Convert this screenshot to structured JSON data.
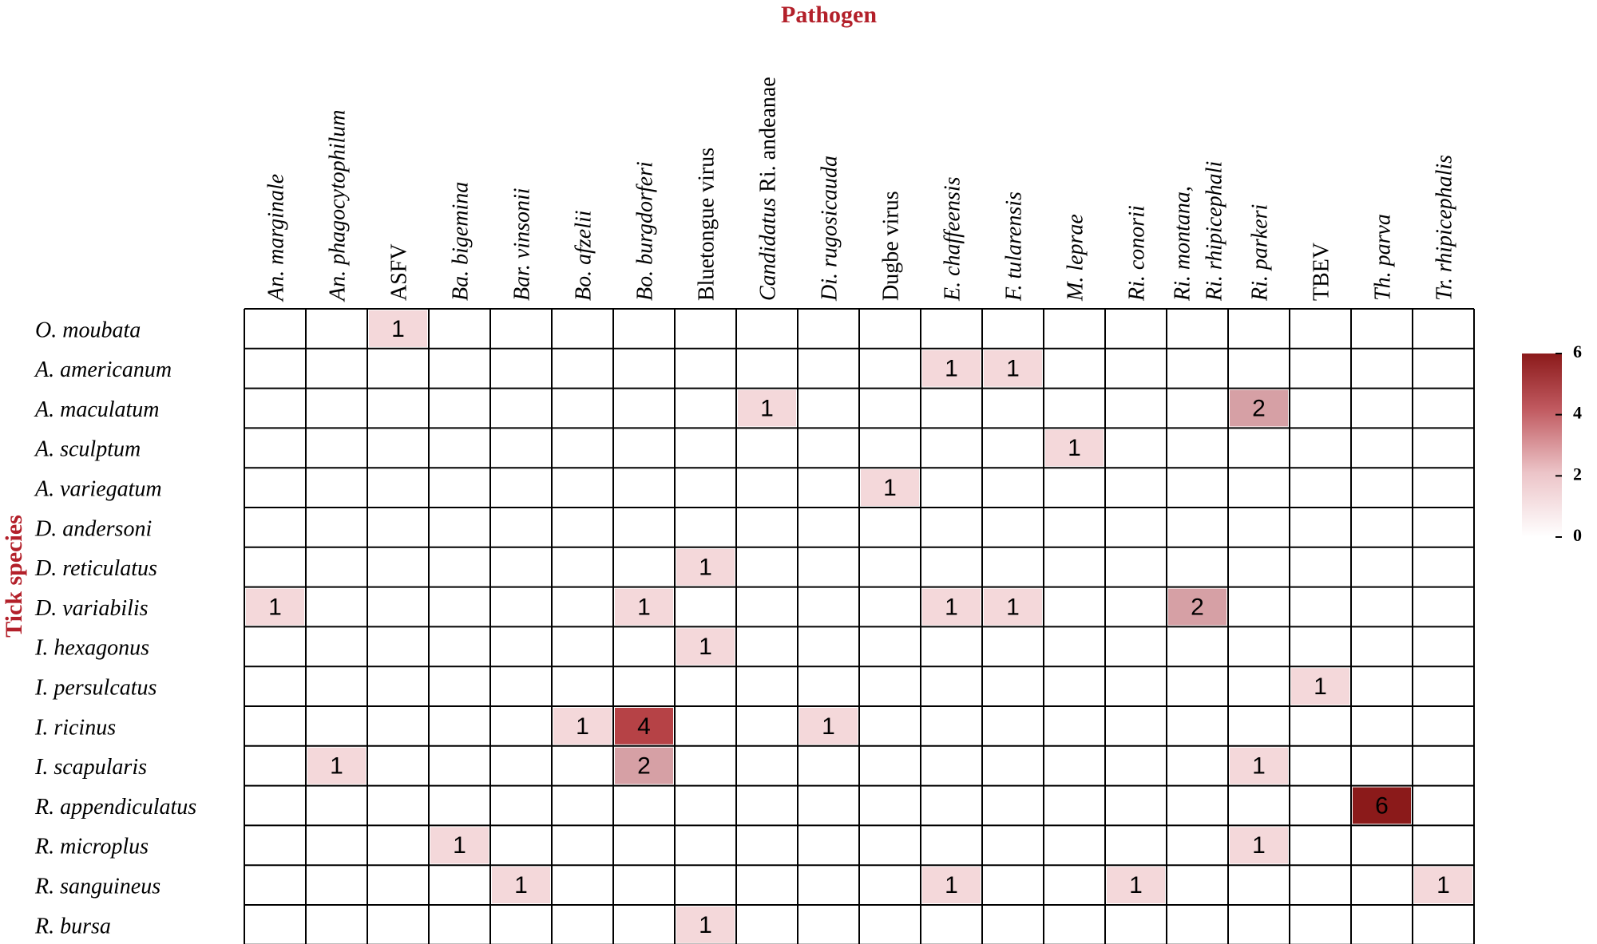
{
  "chart_data": {
    "type": "heatmap",
    "title": "",
    "xlabel": "Pathogen",
    "ylabel": "Tick species",
    "columns": [
      {
        "label": "An. marginale",
        "italic": [
          true
        ]
      },
      {
        "label": "An. phagocytophilum",
        "italic": [
          true
        ]
      },
      {
        "label": "ASFV",
        "italic": [
          false
        ]
      },
      {
        "label": "Ba. bigemina",
        "italic": [
          true
        ]
      },
      {
        "label": "Bar. vinsonii",
        "italic": [
          true
        ]
      },
      {
        "label": "Bo. afzelii",
        "italic": [
          true
        ]
      },
      {
        "label": "Bo. burgdorferi",
        "italic": [
          true
        ]
      },
      {
        "label": "Bluetongue virus",
        "italic": [
          false
        ]
      },
      {
        "label": "Candidatus Ri. andeanae",
        "italic": [
          true,
          false
        ]
      },
      {
        "label": "Di. rugosicauda",
        "italic": [
          true
        ]
      },
      {
        "label": "Dugbe virus",
        "italic": [
          false
        ]
      },
      {
        "label": "E. chaffeensis",
        "italic": [
          true
        ]
      },
      {
        "label": "F. tularensis",
        "italic": [
          true
        ]
      },
      {
        "label": "M. leprae",
        "italic": [
          true
        ]
      },
      {
        "label": "Ri. conorii",
        "italic": [
          true
        ]
      },
      {
        "label": "Ri. montana, Ri. rhipicephali",
        "lines": [
          "Ri. montana,",
          "Ri. rhipicephali"
        ],
        "italic": [
          true
        ]
      },
      {
        "label": "Ri. parkeri",
        "italic": [
          true
        ]
      },
      {
        "label": "TBEV",
        "italic": [
          false
        ]
      },
      {
        "label": "Th. parva",
        "italic": [
          true
        ]
      },
      {
        "label": "Tr. rhipicephalis",
        "italic": [
          true
        ]
      }
    ],
    "rows": [
      "O. moubata",
      "A. americanum",
      "A. maculatum",
      "A. sculptum",
      "A. variegatum",
      "D. andersoni",
      "D. reticulatus",
      "D. variabilis",
      "I. hexagonus",
      "I. persulcatus",
      "I. ricinus",
      "I. scapularis",
      "R. appendiculatus",
      "R. microplus",
      "R. sanguineus",
      "R. bursa"
    ],
    "values": [
      [
        0,
        0,
        1,
        0,
        0,
        0,
        0,
        0,
        0,
        0,
        0,
        0,
        0,
        0,
        0,
        0,
        0,
        0,
        0,
        0
      ],
      [
        0,
        0,
        0,
        0,
        0,
        0,
        0,
        0,
        0,
        0,
        0,
        1,
        1,
        0,
        0,
        0,
        0,
        0,
        0,
        0
      ],
      [
        0,
        0,
        0,
        0,
        0,
        0,
        0,
        0,
        1,
        0,
        0,
        0,
        0,
        0,
        0,
        0,
        2,
        0,
        0,
        0
      ],
      [
        0,
        0,
        0,
        0,
        0,
        0,
        0,
        0,
        0,
        0,
        0,
        0,
        0,
        1,
        0,
        0,
        0,
        0,
        0,
        0
      ],
      [
        0,
        0,
        0,
        0,
        0,
        0,
        0,
        0,
        0,
        0,
        1,
        0,
        0,
        0,
        0,
        0,
        0,
        0,
        0,
        0
      ],
      [
        0,
        0,
        0,
        0,
        0,
        0,
        0,
        0,
        0,
        0,
        0,
        0,
        0,
        0,
        0,
        0,
        0,
        0,
        0,
        0
      ],
      [
        0,
        0,
        0,
        0,
        0,
        0,
        0,
        1,
        0,
        0,
        0,
        0,
        0,
        0,
        0,
        0,
        0,
        0,
        0,
        0
      ],
      [
        1,
        0,
        0,
        0,
        0,
        0,
        1,
        0,
        0,
        0,
        0,
        1,
        1,
        0,
        0,
        2,
        0,
        0,
        0,
        0
      ],
      [
        0,
        0,
        0,
        0,
        0,
        0,
        0,
        1,
        0,
        0,
        0,
        0,
        0,
        0,
        0,
        0,
        0,
        0,
        0,
        0
      ],
      [
        0,
        0,
        0,
        0,
        0,
        0,
        0,
        0,
        0,
        0,
        0,
        0,
        0,
        0,
        0,
        0,
        0,
        1,
        0,
        0
      ],
      [
        0,
        0,
        0,
        0,
        0,
        1,
        4,
        0,
        0,
        1,
        0,
        0,
        0,
        0,
        0,
        0,
        0,
        0,
        0,
        0
      ],
      [
        0,
        1,
        0,
        0,
        0,
        0,
        2,
        0,
        0,
        0,
        0,
        0,
        0,
        0,
        0,
        0,
        1,
        0,
        0,
        0
      ],
      [
        0,
        0,
        0,
        0,
        0,
        0,
        0,
        0,
        0,
        0,
        0,
        0,
        0,
        0,
        0,
        0,
        0,
        0,
        6,
        0
      ],
      [
        0,
        0,
        0,
        1,
        0,
        0,
        0,
        0,
        0,
        0,
        0,
        0,
        0,
        0,
        0,
        0,
        1,
        0,
        0,
        0
      ],
      [
        0,
        0,
        0,
        0,
        1,
        0,
        0,
        0,
        0,
        0,
        0,
        1,
        0,
        0,
        1,
        0,
        0,
        0,
        0,
        1
      ],
      [
        0,
        0,
        0,
        0,
        0,
        0,
        0,
        1,
        0,
        0,
        0,
        0,
        0,
        0,
        0,
        0,
        0,
        0,
        0,
        0
      ]
    ],
    "color_scale": {
      "min": 0,
      "max": 6,
      "low_color": "#ffffff",
      "high_color": "#8b1a1a",
      "ticks": [
        0,
        2,
        4,
        6
      ]
    },
    "grid": true,
    "legend": "right"
  }
}
